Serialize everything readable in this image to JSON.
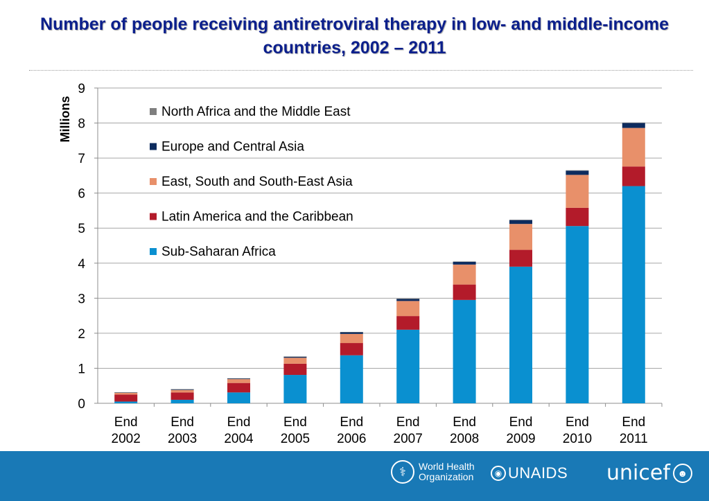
{
  "title": "Number of people receiving antiretroviral therapy in low- and middle-income countries, 2002 – 2011",
  "chart_data": {
    "type": "bar",
    "stacked": true,
    "ylabel": "Millions",
    "ylim": [
      0,
      9
    ],
    "yticks": [
      "0",
      "1",
      "2",
      "3",
      "4",
      "5",
      "6",
      "7",
      "8",
      "9"
    ],
    "grid": "horizontal",
    "legend_position": "top-left",
    "categories": [
      [
        "End",
        "2002"
      ],
      [
        "End",
        "2003"
      ],
      [
        "End",
        "2004"
      ],
      [
        "End",
        "2005"
      ],
      [
        "End",
        "2006"
      ],
      [
        "End",
        "2007"
      ],
      [
        "End",
        "2008"
      ],
      [
        "End",
        "2009"
      ],
      [
        "End",
        "2010"
      ],
      [
        "End",
        "2011"
      ]
    ],
    "series": [
      {
        "name": "Sub-Saharan Africa",
        "color": "#0a90d0",
        "values": [
          0.05,
          0.1,
          0.31,
          0.81,
          1.37,
          2.1,
          2.95,
          3.9,
          5.06,
          6.2
        ]
      },
      {
        "name": "Latin America and the Caribbean",
        "color": "#b31b2a",
        "values": [
          0.2,
          0.21,
          0.27,
          0.32,
          0.35,
          0.39,
          0.44,
          0.48,
          0.52,
          0.56
        ]
      },
      {
        "name": "East, South and South-East Asia",
        "color": "#e8906a",
        "values": [
          0.05,
          0.07,
          0.11,
          0.17,
          0.26,
          0.43,
          0.57,
          0.74,
          0.94,
          1.1
        ]
      },
      {
        "name": "Europe and Central Asia",
        "color": "#0d2b5e",
        "values": [
          0.01,
          0.02,
          0.02,
          0.03,
          0.05,
          0.06,
          0.08,
          0.11,
          0.12,
          0.14
        ]
      },
      {
        "name": "North Africa and the Middle East",
        "color": "#7f7f7f",
        "values": [
          0.003,
          0.004,
          0.005,
          0.006,
          0.007,
          0.008,
          0.009,
          0.01,
          0.012,
          0.015
        ]
      }
    ],
    "legend_order": [
      "North Africa and the Middle East",
      "Europe and Central Asia",
      "East, South and South-East Asia",
      "Latin America and the Caribbean",
      "Sub-Saharan Africa"
    ]
  },
  "footer": {
    "who_line1": "World Health",
    "who_line2": "Organization",
    "unaids": "UNAIDS",
    "unicef": "unicef"
  },
  "colors": {
    "title": "#0b1f8c",
    "footer_band": "#1979b6"
  },
  "icons": [
    "who-emblem-icon",
    "unaids-ribbon-icon",
    "unicef-emblem-icon"
  ]
}
